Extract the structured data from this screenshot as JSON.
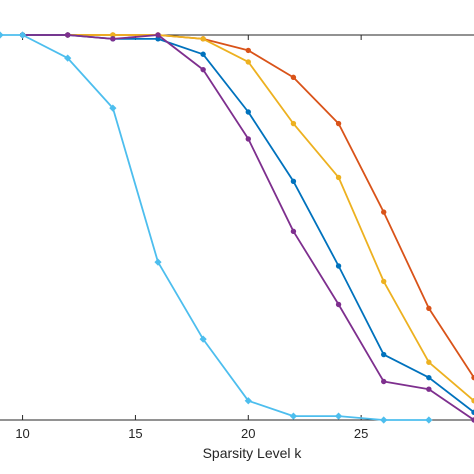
{
  "chart_data": {
    "type": "line",
    "title": "",
    "xlabel": "Sparsity Level k",
    "ylabel": "",
    "xlim": [
      9,
      30
    ],
    "ylim": [
      0,
      1
    ],
    "grid": false,
    "legend": "none",
    "x_ticks": [
      10,
      15,
      20,
      25
    ],
    "series": [
      {
        "color": "#D95319",
        "marker": "dot",
        "x": [
          10,
          12,
          14,
          16,
          18,
          20,
          22,
          24,
          26,
          28,
          30
        ],
        "y": [
          1.0,
          1.0,
          1.0,
          1.0,
          0.99,
          0.96,
          0.89,
          0.77,
          0.54,
          0.29,
          0.11
        ]
      },
      {
        "color": "#EDB120",
        "marker": "dot",
        "x": [
          10,
          12,
          14,
          16,
          18,
          20,
          22,
          24,
          26,
          28,
          30
        ],
        "y": [
          1.0,
          1.0,
          1.0,
          1.0,
          0.99,
          0.93,
          0.77,
          0.63,
          0.36,
          0.15,
          0.05
        ]
      },
      {
        "color": "#0072BD",
        "marker": "dot",
        "x": [
          10,
          12,
          14,
          16,
          18,
          20,
          22,
          24,
          26,
          28,
          30
        ],
        "y": [
          1.0,
          1.0,
          0.99,
          0.99,
          0.95,
          0.8,
          0.62,
          0.4,
          0.17,
          0.11,
          0.02
        ]
      },
      {
        "color": "#7E2F8E",
        "marker": "dot",
        "x": [
          10,
          12,
          14,
          16,
          18,
          20,
          22,
          24,
          26,
          28,
          30
        ],
        "y": [
          1.0,
          1.0,
          0.99,
          1.0,
          0.91,
          0.73,
          0.49,
          0.3,
          0.1,
          0.08,
          0.0
        ]
      },
      {
        "color": "#4DBEEE",
        "marker": "diamond",
        "x": [
          9,
          10,
          12,
          14,
          16,
          18,
          20,
          22,
          24,
          26,
          28
        ],
        "y": [
          1.0,
          1.0,
          0.94,
          0.81,
          0.41,
          0.21,
          0.05,
          0.01,
          0.01,
          0.0,
          0.0
        ]
      }
    ]
  }
}
